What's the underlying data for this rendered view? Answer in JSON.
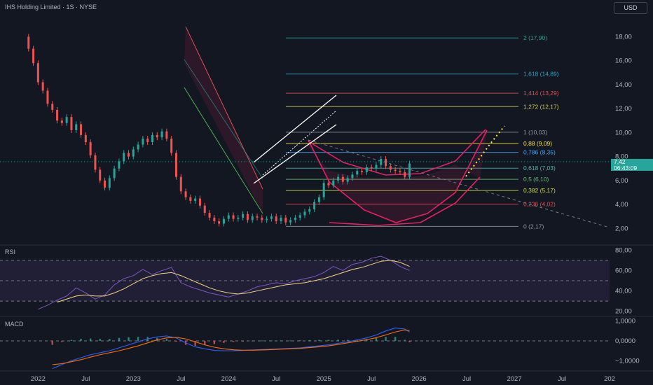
{
  "header": {
    "title": "IHS Holding Limited · 1S · NYSE",
    "currency_button": "USD"
  },
  "colors": {
    "background": "#131722",
    "up": "#26a69a",
    "down": "#ef5350",
    "rsi": "#7e57c2",
    "rsi_ma": "#f7d57a",
    "macd": "#2962ff",
    "signal": "#ff6d00"
  },
  "price_tag": {
    "price": "7,42",
    "countdown": "06:43:09"
  },
  "chart_data": [
    {
      "type": "line",
      "pane": "price",
      "y_ticks": [
        "18,00",
        "16,00",
        "14,00",
        "12,00",
        "10,00",
        "8,00",
        "6,00",
        "4,00",
        "2,00"
      ],
      "y_tick_values": [
        18,
        16,
        14,
        12,
        10,
        8,
        6,
        4,
        2
      ],
      "ylim": [
        1.2,
        19.9
      ],
      "x_ticks": [
        "2022",
        "Jul",
        "2023",
        "Jul",
        "2024",
        "Jul",
        "2025",
        "Jul",
        "2026",
        "Jul",
        "2027",
        "Jul",
        "202"
      ],
      "x_tick_values": [
        2022.0,
        2022.5,
        2023.0,
        2023.5,
        2024.0,
        2024.5,
        2025.0,
        2025.5,
        2026.0,
        2026.5,
        2027.0,
        2027.5,
        2028.0
      ],
      "xlim": [
        2021.6,
        2028.0
      ],
      "fib_levels": [
        {
          "label": "2 (17,90)",
          "value": 17.9,
          "color": "#26a69a"
        },
        {
          "label": "1,618 (14,89)",
          "value": 14.89,
          "color": "#22a6c7"
        },
        {
          "label": "1,414 (13,29)",
          "value": 13.29,
          "color": "#e04f4f"
        },
        {
          "label": "1,272 (12,17)",
          "value": 12.17,
          "color": "#c7c94a"
        },
        {
          "label": "1 (10,03)",
          "value": 10.03,
          "color": "#9598a1"
        },
        {
          "label": "0,88 (9,09)",
          "value": 9.09,
          "color": "#f5e14a"
        },
        {
          "label": "0,786 (8,35)",
          "value": 8.35,
          "color": "#42a5f5"
        },
        {
          "label": "0,618 (7,03)",
          "value": 7.03,
          "color": "#4db6ac"
        },
        {
          "label": "0,5 (6,10)",
          "value": 6.1,
          "color": "#66bb6a"
        },
        {
          "label": "0,382 (5,17)",
          "value": 5.17,
          "color": "#cddc39"
        },
        {
          "label": "0,236 (4,02)",
          "value": 4.02,
          "color": "#e04f4f"
        },
        {
          "label": "0 (2,17)",
          "value": 2.17,
          "color": "#9598a1"
        }
      ],
      "close_series": {
        "x": [
          2021.85,
          2021.9,
          2021.95,
          2022.0,
          2022.05,
          2022.1,
          2022.15,
          2022.2,
          2022.25,
          2022.3,
          2022.35,
          2022.4,
          2022.45,
          2022.5,
          2022.55,
          2022.6,
          2022.65,
          2022.7,
          2022.75,
          2022.8,
          2022.85,
          2022.9,
          2022.95,
          2023.0,
          2023.05,
          2023.1,
          2023.15,
          2023.2,
          2023.25,
          2023.3,
          2023.35,
          2023.4,
          2023.45,
          2023.5,
          2023.55,
          2023.6,
          2023.65,
          2023.7,
          2023.75,
          2023.8,
          2023.85,
          2023.9,
          2023.95,
          2024.0,
          2024.05,
          2024.1,
          2024.15,
          2024.2,
          2024.25,
          2024.3,
          2024.35,
          2024.4,
          2024.45,
          2024.5,
          2024.55,
          2024.6,
          2024.65,
          2024.7,
          2024.75,
          2024.8,
          2024.85,
          2024.9,
          2024.95,
          2025.0,
          2025.05,
          2025.1,
          2025.15,
          2025.2,
          2025.25,
          2025.3,
          2025.35,
          2025.4,
          2025.45,
          2025.5,
          2025.55,
          2025.6,
          2025.65,
          2025.7,
          2025.75,
          2025.8,
          2025.85,
          2025.9
        ],
        "close": [
          18.0,
          17.0,
          15.8,
          14.2,
          13.5,
          12.4,
          11.9,
          11.0,
          10.8,
          11.3,
          10.2,
          10.7,
          9.8,
          9.2,
          8.1,
          6.9,
          6.0,
          5.4,
          6.2,
          7.0,
          7.6,
          8.3,
          8.0,
          8.6,
          9.0,
          9.5,
          9.2,
          9.8,
          9.6,
          10.1,
          9.5,
          8.3,
          6.3,
          5.1,
          4.6,
          4.3,
          4.5,
          3.9,
          3.3,
          2.9,
          2.6,
          2.4,
          2.8,
          3.1,
          2.8,
          2.9,
          3.2,
          2.7,
          3.0,
          2.9,
          2.7,
          2.8,
          3.0,
          2.6,
          2.9,
          2.5,
          2.7,
          2.9,
          3.1,
          3.4,
          3.6,
          4.2,
          4.6,
          5.8,
          5.6,
          6.0,
          6.3,
          5.9,
          6.2,
          6.5,
          6.8,
          6.7,
          7.1,
          7.0,
          7.3,
          7.8,
          7.2,
          6.9,
          6.8,
          6.7,
          6.3,
          7.42
        ]
      }
    },
    {
      "type": "line",
      "pane": "rsi",
      "title": "RSI",
      "y_ticks": [
        "80,00",
        "60,00",
        "40,00",
        "20,00"
      ],
      "y_tick_values": [
        80,
        60,
        40,
        20
      ],
      "ylim": [
        15,
        85
      ],
      "bands": [
        70,
        50,
        30
      ],
      "series": [
        {
          "role": "rsi",
          "x": [
            2022.0,
            2022.1,
            2022.2,
            2022.3,
            2022.4,
            2022.5,
            2022.6,
            2022.7,
            2022.8,
            2022.9,
            2023.0,
            2023.1,
            2023.2,
            2023.3,
            2023.4,
            2023.5,
            2023.6,
            2023.7,
            2023.8,
            2023.9,
            2024.0,
            2024.1,
            2024.2,
            2024.3,
            2024.4,
            2024.5,
            2024.6,
            2024.7,
            2024.8,
            2024.9,
            2025.0,
            2025.1,
            2025.2,
            2025.3,
            2025.4,
            2025.5,
            2025.6,
            2025.7,
            2025.8,
            2025.9
          ],
          "values": [
            22,
            26,
            31,
            35,
            43,
            38,
            32,
            36,
            46,
            52,
            55,
            61,
            56,
            60,
            63,
            48,
            44,
            41,
            38,
            36,
            34,
            37,
            40,
            44,
            46,
            48,
            47,
            50,
            52,
            54,
            58,
            64,
            60,
            66,
            68,
            72,
            74,
            70,
            64,
            60
          ]
        },
        {
          "role": "rsi-ma",
          "x": [
            2022.2,
            2022.3,
            2022.4,
            2022.5,
            2022.6,
            2022.7,
            2022.8,
            2022.9,
            2023.0,
            2023.1,
            2023.2,
            2023.3,
            2023.4,
            2023.5,
            2023.6,
            2023.7,
            2023.8,
            2023.9,
            2024.0,
            2024.1,
            2024.2,
            2024.3,
            2024.4,
            2024.5,
            2024.6,
            2024.7,
            2024.8,
            2024.9,
            2025.0,
            2025.1,
            2025.2,
            2025.3,
            2025.4,
            2025.5,
            2025.6,
            2025.7,
            2025.8,
            2025.9
          ],
          "values": [
            29,
            32,
            35,
            36,
            35,
            35,
            38,
            42,
            47,
            52,
            55,
            57,
            58,
            55,
            51,
            47,
            43,
            40,
            38,
            37,
            38,
            40,
            42,
            44,
            46,
            47,
            48,
            50,
            52,
            55,
            58,
            61,
            63,
            66,
            69,
            70,
            68,
            64
          ]
        }
      ]
    },
    {
      "type": "line",
      "pane": "macd",
      "title": "MACD",
      "y_ticks": [
        "1,0000",
        "0,0000",
        "−1,0000"
      ],
      "y_tick_values": [
        1,
        0,
        -1
      ],
      "ylim": [
        -1.45,
        1.2
      ],
      "x": [
        2022.15,
        2022.25,
        2022.35,
        2022.45,
        2022.55,
        2022.65,
        2022.75,
        2022.85,
        2022.95,
        2023.05,
        2023.15,
        2023.25,
        2023.35,
        2023.45,
        2023.55,
        2023.65,
        2023.75,
        2023.85,
        2023.95,
        2024.05,
        2024.15,
        2024.25,
        2024.35,
        2024.45,
        2024.55,
        2024.65,
        2024.75,
        2024.85,
        2024.95,
        2025.05,
        2025.15,
        2025.25,
        2025.35,
        2025.45,
        2025.55,
        2025.65,
        2025.75,
        2025.85,
        2025.9
      ],
      "series": [
        {
          "role": "macd",
          "values": [
            -1.4,
            -1.2,
            -1.0,
            -0.85,
            -0.7,
            -0.6,
            -0.5,
            -0.35,
            -0.2,
            -0.05,
            0.1,
            0.2,
            0.25,
            0.15,
            -0.1,
            -0.3,
            -0.4,
            -0.48,
            -0.5,
            -0.5,
            -0.48,
            -0.46,
            -0.44,
            -0.42,
            -0.4,
            -0.38,
            -0.35,
            -0.3,
            -0.25,
            -0.2,
            -0.12,
            -0.05,
            0.05,
            0.15,
            0.3,
            0.5,
            0.65,
            0.6,
            0.45
          ]
        },
        {
          "role": "signal",
          "values": [
            -1.2,
            -1.15,
            -1.05,
            -0.95,
            -0.82,
            -0.7,
            -0.6,
            -0.5,
            -0.38,
            -0.25,
            -0.1,
            0.05,
            0.15,
            0.18,
            0.1,
            -0.05,
            -0.2,
            -0.32,
            -0.4,
            -0.45,
            -0.47,
            -0.47,
            -0.46,
            -0.44,
            -0.42,
            -0.4,
            -0.38,
            -0.34,
            -0.3,
            -0.25,
            -0.18,
            -0.1,
            -0.02,
            0.06,
            0.16,
            0.3,
            0.45,
            0.55,
            0.52
          ]
        }
      ]
    }
  ]
}
